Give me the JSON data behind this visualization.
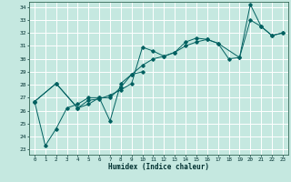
{
  "title": "",
  "xlabel": "Humidex (Indice chaleur)",
  "bg_color": "#c5e8e0",
  "grid_color": "#ffffff",
  "line_color": "#006060",
  "xlim": [
    -0.5,
    23.5
  ],
  "ylim": [
    22.6,
    34.4
  ],
  "xticks": [
    0,
    1,
    2,
    3,
    4,
    5,
    6,
    7,
    8,
    9,
    10,
    11,
    12,
    13,
    14,
    15,
    16,
    17,
    18,
    19,
    20,
    21,
    22,
    23
  ],
  "yticks": [
    23,
    24,
    25,
    26,
    27,
    28,
    29,
    30,
    31,
    32,
    33,
    34
  ],
  "line1_x": [
    0,
    2,
    4,
    5,
    6,
    7,
    8,
    9,
    10,
    11,
    12,
    13,
    14,
    15,
    16,
    17,
    19,
    20,
    21,
    22,
    23
  ],
  "line1_y": [
    26.7,
    28.1,
    26.2,
    26.8,
    26.9,
    27.2,
    27.6,
    28.1,
    30.9,
    30.6,
    30.2,
    30.5,
    31.3,
    31.6,
    31.5,
    31.2,
    30.1,
    34.2,
    32.5,
    31.8,
    32.0
  ],
  "line2_x": [
    0,
    2,
    4,
    5,
    6,
    7,
    8,
    9,
    10
  ],
  "line2_y": [
    26.7,
    28.1,
    26.2,
    26.5,
    27.0,
    25.2,
    28.1,
    28.8,
    29.0
  ],
  "line3_x": [
    0,
    1,
    2,
    3,
    4,
    5,
    6,
    7,
    8,
    9,
    10,
    11,
    12,
    13,
    14,
    15,
    16,
    17,
    18,
    19,
    20,
    21,
    22,
    23
  ],
  "line3_y": [
    26.7,
    23.3,
    24.6,
    26.2,
    26.5,
    27.0,
    27.0,
    27.0,
    27.8,
    28.8,
    29.5,
    30.0,
    30.2,
    30.5,
    31.0,
    31.3,
    31.5,
    31.2,
    30.0,
    30.1,
    33.0,
    32.5,
    31.8,
    32.0
  ]
}
